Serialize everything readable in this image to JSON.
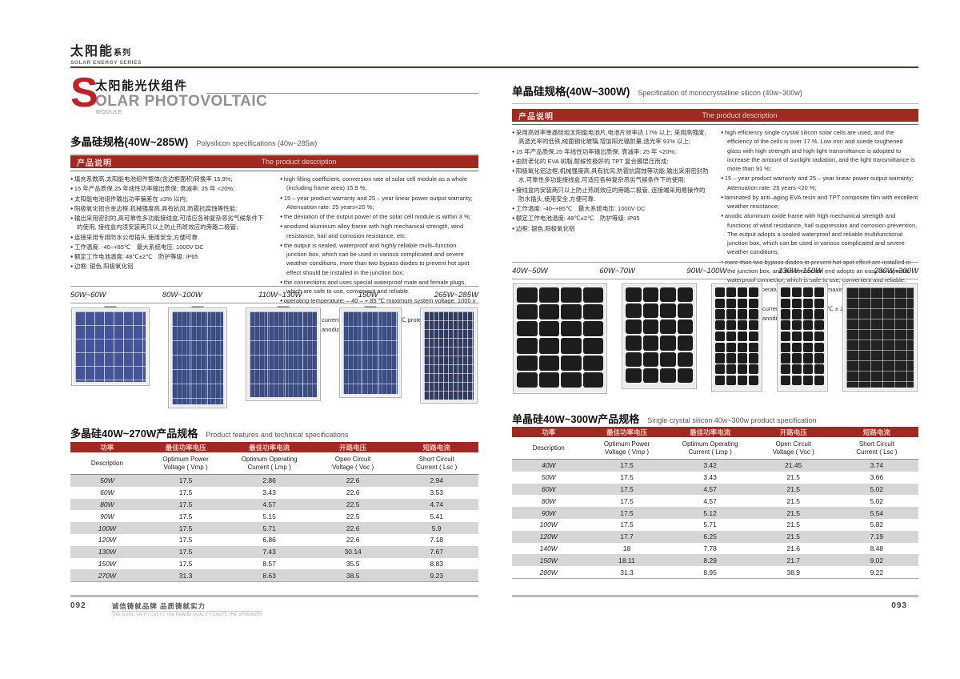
{
  "series_header": {
    "title_cn": "太阳能",
    "title_cn_small": "系列",
    "subtitle_en": "SOLAR ENERGY SERIES"
  },
  "left_page": {
    "page_number": "092",
    "slogan_cn": "诚信铸就品牌 品质铸就实力",
    "slogan_en": "THE GOOD FAITH CASTS THE BRAND QUALITY CASTS THE STRENGTH",
    "title": {
      "initial": "S",
      "cn": "太阳能光伏组件",
      "en": "OLAR PHOTOVOLTAIC",
      "sub": "MODULE"
    },
    "section": {
      "cn": "多晶硅规格(40W~285W)",
      "en": "Polysilicon specifications (40w~285w)"
    },
    "desc_header": {
      "cn": "产品说明",
      "en": "The product description"
    },
    "bullets_cn": [
      "填充系数高,太阳能电池组件整体(含边框面积)转换率 15.9%;",
      "15 年产品质保,25 年线性功率输出质保; 衰减率: 25 年 <20%;",
      "太阳能电池组件输出功率偏差在 ±3% 以内;",
      "阳极氧化铝合金边框,机械强度高,具有抗风,防雹抗腐蚀等性能;",
      "输出采用密封的,高可靠性多功能接线盒,可适应各种复杂恶劣气候条件下的使用, 接线盒内须安装两只以上防止热斑效应的旁路二极管;",
      "连接采用专用防水公母插头,使用安全,方便可靠.",
      "工作温度: -40~+85℃　最大系统电压: 1000V DC",
      "额定工作电池温度: 48℃±2℃　防护等级: IP65",
      "边框: 银色,阳极氧化铝"
    ],
    "bullets_en": [
      "high filling coefficient, conversion rate of solar cell module as a whole (including frame area) 15.9 %;",
      "15 – year product warranty and 25 – year linear power output warranty; Attenuation rate: 25 years<20 %;",
      "the deviation of the output power of the solar cell module is within 3 %;",
      "anodized aluminum alloy frame with high mechanical strength, wind resistance, hail and corrosion resistance, etc.",
      "the output is sealed, waterproof and highly reliable multi–function junction box, which can be used in various complicated and severe weather conditions, more than two bypass diodes to prevent hot spot effect should be installed in the junction box;",
      "the connections and uses special waterproof male and female plugs, which are safe to use, convenient and reliable.",
      "operating temperature: – 40 – + 85 ℃ maximum system voltage: 1000 v DC",
      "rated working current temperature: 48 ℃ 2 ℃ protection level: IP65",
      "border: silver, anodized aluminum"
    ],
    "panel_labels": [
      "50W~60W",
      "80W~100W",
      "110W~130W",
      "150W",
      "265W~285W"
    ],
    "table": {
      "title_cn": "多晶硅40W~270W产品规格",
      "title_en": "Product features and technical specifications",
      "headers_cn": [
        "功率",
        "最佳功率电压",
        "最佳功率电流",
        "开路电压",
        "短路电流"
      ],
      "headers_en": [
        "Description",
        "Optimum Power\nVoltage ( Vmp )",
        "Optimum Operating\nCurrent ( Lmp )",
        "Open Circuit\nVoltage ( Voc )",
        "Short Circuit\nCurrent ( Lsc )"
      ],
      "rows": [
        [
          "50W",
          "17.5",
          "2.86",
          "22.6",
          "2.94"
        ],
        [
          "60W",
          "17.5",
          "3.43",
          "22.6",
          "3.53"
        ],
        [
          "80W",
          "17.5",
          "4.57",
          "22.5",
          "4.74"
        ],
        [
          "90W",
          "17.5",
          "5.15",
          "22.5",
          "5.41"
        ],
        [
          "100W",
          "17.5",
          "5.71",
          "22.6",
          "5.9"
        ],
        [
          "120W",
          "17.5",
          "6.86",
          "22.6",
          "7.18"
        ],
        [
          "130W",
          "17.5",
          "7.43",
          "30.14",
          "7.67"
        ],
        [
          "150W",
          "17.5",
          "8.57",
          "35.5",
          "8.83"
        ],
        [
          "270W",
          "31.3",
          "8.63",
          "38.5",
          "9.23"
        ]
      ]
    }
  },
  "right_page": {
    "page_number": "093",
    "section": {
      "cn": "单晶硅规格(40W~300W)",
      "en": "Specification of monocrystalline silicon (40w~300w)"
    },
    "desc_header": {
      "cn": "产品说明",
      "en": "The product description"
    },
    "bullets_cn": [
      "采用高效率单晶硅组太阳能电池片,电池片效率达 17% 以上; 采用高强度,高透光率的低铁,绒面钢化玻璃,增加阳光辐射量,透光率 91% 以上;",
      "15 年产品质保,25 年线性功率输出质保; 衰减率: 25 年 <20%;",
      "由防老化的 EVA 树脂,耐候性极好的 TPT 复合膜层压而成;",
      "阳极氧化铝边框,机械强度高,具有抗风,防雹抗腐蚀等功能,输出采用密封防水,可靠性多功能接线盒,可适应各种复杂恶劣气候条件下的使用;",
      "接线盒内安装两只以上防止热斑效应的旁路二极管, 连接端采用易操作的防水插头,使用安全,方便可靠.",
      "工作温度: -40~+85℃　最大系统电压: 1000V DC",
      "额定工作电池温度: 48℃±2℃　防护等级: IP65",
      "边框: 银色,阳极氧化铝"
    ],
    "bullets_en": [
      "high efficiency single crystal silicon solar cells are used, and the efficiency of the cells is over 17 %. Low iron and suede toughened glass with high strength and high light transmittance is adopted to increase the amount of sunlight radiation, and the light transmittance is more than 91 %;",
      "15 – year product warranty and 25 – year linear power output warranty; Attenuation rate: 25 years <20 %;",
      "laminated by anti–aging EVA resin and TPT composite film with excellent weather resistance;",
      "anodic aluminum oxide frame with high mechanical strength and functions of wind resistance, hail suppression and corrosion prevention. The output adopts a sealed waterproof and reliable multifunctional junction box, which can be used in various complicated and severe weather conditions;",
      "more than two bypass diodes to prevent hot spot effect are installed in the junction box, and the connection end adopts an easy–to–operate waterproof connector, which is safe to use, convenient and reliable.",
      "operating temperature: – 40 – + 85 ℃ maximum system voltage: 1000 v DC",
      "rated working current temperature: 48 ℃ ± 2 ℃ protection level: IP65",
      "border: silver, anodized aluminum"
    ],
    "panel_labels": [
      "40W~50W",
      "60W~70W",
      "90W~100W",
      "130W~150W",
      "280W~300W"
    ],
    "table": {
      "title_cn": "单晶硅40W~300W产品规格",
      "title_en": "Single crystal silicon 40w~300w product specification",
      "headers_cn": [
        "功率",
        "最佳功率电压",
        "最佳功率电流",
        "开路电压",
        "短路电流"
      ],
      "headers_en": [
        "Description",
        "Optimum Power\nVoltage ( Vmp )",
        "Optimum Operating\nCurrent ( Lmp )",
        "Open Circuit\nVoltage ( Voc )",
        "Short Circuit\nCurrent ( Lsc )"
      ],
      "rows": [
        [
          "40W",
          "17.5",
          "3.42",
          "21.45",
          "3.74"
        ],
        [
          "50W",
          "17.5",
          "3.43",
          "21.5",
          "3.66"
        ],
        [
          "60W",
          "17.5",
          "4.57",
          "21.5",
          "5.02"
        ],
        [
          "80W",
          "17.5",
          "4.57",
          "21.5",
          "5.02"
        ],
        [
          "90W",
          "17.5",
          "5.12",
          "21.5",
          "5.54"
        ],
        [
          "100W",
          "17.5",
          "5.71",
          "21.5",
          "5.82"
        ],
        [
          "120W",
          "17.7",
          "6.25",
          "21.5",
          "7.19"
        ],
        [
          "140W",
          "18",
          "7.78",
          "21.6",
          "8.48"
        ],
        [
          "150W",
          "18.11",
          "8.29",
          "21.7",
          "9.02"
        ],
        [
          "280W",
          "31.3",
          "8.95",
          "38.9",
          "9.22"
        ]
      ]
    }
  },
  "colors": {
    "accent_red": "#9e2a22",
    "rule_maroon": "#7d2b24",
    "row_stripe": "#d6d6d6",
    "poly_blue": "#3e4d80",
    "mono_black": "#1d1d1d"
  }
}
